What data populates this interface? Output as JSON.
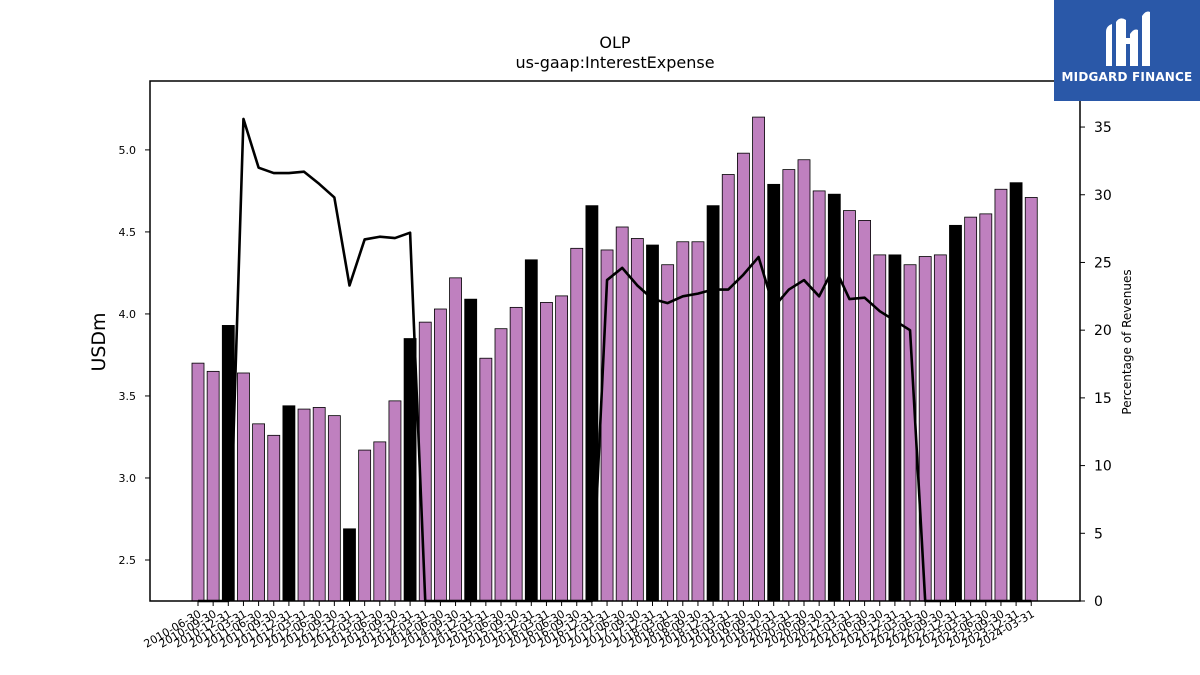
{
  "logo": {
    "text": "MIDGARD FINANCE",
    "background": "#2a58a8",
    "icon": "midgard-m-logo-icon"
  },
  "chart_data": {
    "type": "bar",
    "title": "OLP",
    "subtitle": "us-gaap:InterestExpense",
    "ylabel": "USDm",
    "ylabel_right": "Percentage of Revenues",
    "ylim": [
      2.25,
      5.42
    ],
    "ylim_right": [
      0,
      38.4
    ],
    "yticks": [
      "2.5",
      "3.0",
      "3.5",
      "4.0",
      "4.5",
      "5.0"
    ],
    "yticks_right": [
      "0",
      "5",
      "10",
      "15",
      "20",
      "25",
      "30",
      "35"
    ],
    "grid": false,
    "colors": {
      "bar": "#bf80bf",
      "bar_highlight": "#000000",
      "line": "#000000"
    },
    "categories": [
      "2010-06-30",
      "2010-09-30",
      "2010-12-31",
      "2011-03-31",
      "2011-06-30",
      "2011-09-30",
      "2011-12-31",
      "2012-03-31",
      "2012-06-30",
      "2012-09-30",
      "2012-12-31",
      "2013-03-31",
      "2013-06-30",
      "2013-09-30",
      "2013-12-31",
      "2014-03-31",
      "2014-06-30",
      "2014-09-30",
      "2014-12-31",
      "2015-03-31",
      "2015-06-30",
      "2015-09-30",
      "2015-12-31",
      "2016-03-31",
      "2016-06-30",
      "2016-09-30",
      "2016-12-31",
      "2017-03-31",
      "2017-06-30",
      "2017-09-30",
      "2017-12-31",
      "2018-03-31",
      "2018-06-30",
      "2018-09-30",
      "2018-12-31",
      "2019-03-31",
      "2019-06-30",
      "2019-09-30",
      "2019-12-31",
      "2020-03-31",
      "2020-06-30",
      "2020-09-30",
      "2020-12-31",
      "2021-03-31",
      "2021-06-30",
      "2021-09-30",
      "2021-12-31",
      "2022-03-31",
      "2022-06-30",
      "2022-09-30",
      "2022-12-31",
      "2023-03-31",
      "2023-06-30",
      "2023-09-30",
      "2023-12-31",
      "2024-03-31"
    ],
    "xtick_labels": [
      "2010-06-30",
      "2010-09-30",
      "2010-12-31",
      "2011-03-31",
      "2011-06-30",
      "2011-09-30",
      "2011-12-31",
      "2012-03-31",
      "2012-06-30",
      "2012-09-30",
      "2012-12-31",
      "2013-03-31",
      "2013-06-30",
      "2013-09-30",
      "2013-12-31",
      "2014-03-31",
      "2014-06-30",
      "2014-09-30",
      "2014-12-31",
      "2015-03-31",
      "2015-06-30",
      "2015-09-30",
      "2015-12-31",
      "2016-03-31",
      "2016-06-30",
      "2016-09-30",
      "2016-12-31",
      "2017-03-31",
      "2017-06-30",
      "2017-09-30",
      "2017-12-31",
      "2018-03-31",
      "2018-06-30",
      "2018-09-30",
      "2018-12-31",
      "2019-03-31",
      "2019-06-30",
      "2019-09-30",
      "2019-12-31",
      "2020-03-31",
      "2020-06-30",
      "2020-09-30",
      "2020-12-31",
      "2021-03-31",
      "2021-06-30",
      "2021-09-30",
      "2021-12-31",
      "2022-03-31",
      "2022-06-30",
      "2022-09-30",
      "2022-12-31",
      "2023-03-31",
      "2023-06-30",
      "2023-09-30",
      "2023-12-31",
      "2024-03-31"
    ],
    "series": [
      {
        "type": "bar",
        "axis": "left",
        "values": [
          3.7,
          3.65,
          3.93,
          3.64,
          3.33,
          3.26,
          3.44,
          3.42,
          3.43,
          3.38,
          2.69,
          3.17,
          3.22,
          3.47,
          3.85,
          3.95,
          4.03,
          4.22,
          4.09,
          3.73,
          3.91,
          4.04,
          4.33,
          4.07,
          4.11,
          4.4,
          4.66,
          4.39,
          4.53,
          4.46,
          4.42,
          4.3,
          4.44,
          4.44,
          4.66,
          4.85,
          4.98,
          5.2,
          4.79,
          4.88,
          4.94,
          4.75,
          4.73,
          4.63,
          4.57,
          4.36,
          4.36,
          4.3,
          4.35,
          4.36,
          4.54,
          4.59,
          4.61,
          4.76,
          4.8,
          4.71
        ],
        "highlight": [
          false,
          false,
          true,
          false,
          false,
          false,
          true,
          false,
          false,
          false,
          true,
          false,
          false,
          false,
          true,
          false,
          false,
          false,
          true,
          false,
          false,
          false,
          true,
          false,
          false,
          false,
          true,
          false,
          false,
          false,
          true,
          false,
          false,
          false,
          true,
          false,
          false,
          false,
          true,
          false,
          false,
          false,
          true,
          false,
          false,
          false,
          true,
          false,
          false,
          false,
          true,
          false,
          false,
          false,
          true,
          false
        ]
      },
      {
        "type": "line",
        "axis": "right",
        "values": [
          0,
          0,
          0,
          35.6,
          32.0,
          31.6,
          31.6,
          31.7,
          30.8,
          29.8,
          23.3,
          26.7,
          26.9,
          26.8,
          27.2,
          0,
          0,
          0,
          0,
          0,
          0,
          0,
          0,
          0,
          0,
          0,
          0,
          23.7,
          24.6,
          23.3,
          22.3,
          22.0,
          22.5,
          22.7,
          23.0,
          23.0,
          24.1,
          25.4,
          21.7,
          23.0,
          23.7,
          22.5,
          24.7,
          22.3,
          22.4,
          21.4,
          20.7,
          20.0,
          0,
          0,
          0,
          0,
          0,
          0,
          0,
          0
        ]
      }
    ]
  }
}
